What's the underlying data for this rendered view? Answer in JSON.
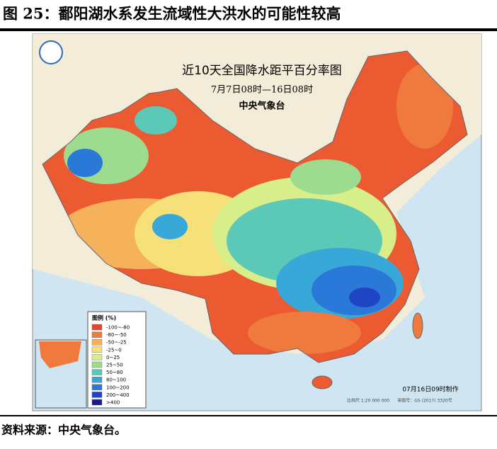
{
  "figure_title": "图 25：鄱阳湖水系发生流域性大洪水的可能性较高",
  "map": {
    "title": "近10天全国降水距平百分率图",
    "period": "7月7日08时—16日08时",
    "issuer": "中央气象台",
    "legend": {
      "title": "图例 (%)",
      "items": [
        {
          "label": "-100~-80",
          "color": "#e8462c"
        },
        {
          "label": "-80~-50",
          "color": "#f07a3e"
        },
        {
          "label": "-50~-25",
          "color": "#f6b25a"
        },
        {
          "label": "-25~0",
          "color": "#f6e07a"
        },
        {
          "label": "0~25",
          "color": "#d8ee8a"
        },
        {
          "label": "25~50",
          "color": "#9ddc8e"
        },
        {
          "label": "50~80",
          "color": "#5cc8b8"
        },
        {
          "label": "80~100",
          "color": "#38a8d8"
        },
        {
          "label": "100~200",
          "color": "#2a78d8"
        },
        {
          "label": "200~400",
          "color": "#1f44c4"
        },
        {
          "label": ">400",
          "color": "#1a1a8c"
        }
      ]
    },
    "made_at": "07月16日09时制作",
    "scale": "比例尺 1:20 000 000",
    "review_no": "审图号：GS (2017) 3320号"
  },
  "source": "资料来源：中央气象台。"
}
